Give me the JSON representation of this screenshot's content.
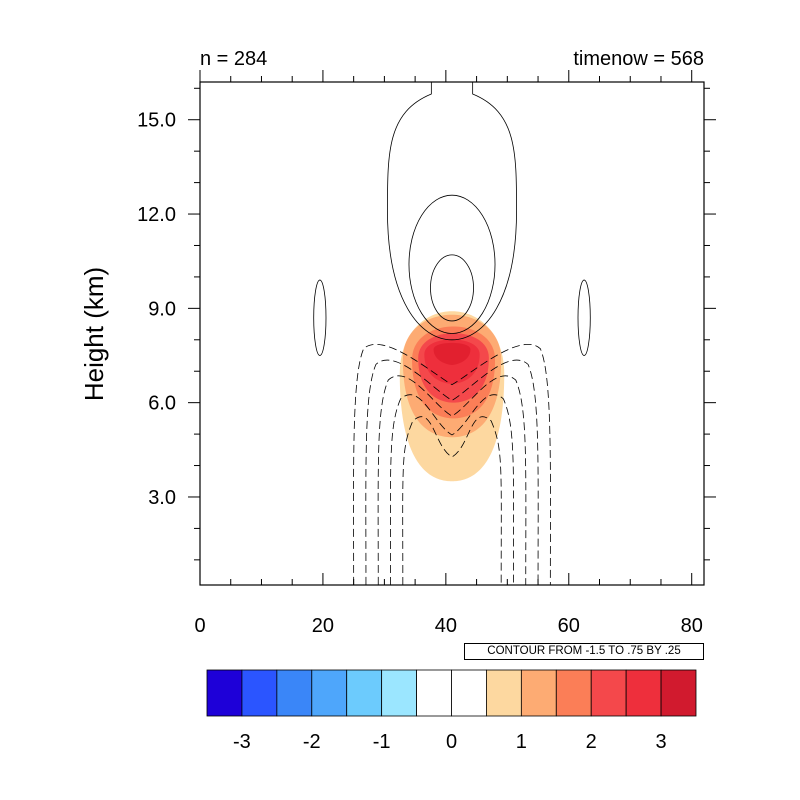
{
  "chart_data": {
    "type": "heatmap",
    "title_left": "n = 284",
    "title_right": "timenow = 568",
    "ylabel": "Height (km)",
    "xlabel": "",
    "xlim": [
      0,
      82
    ],
    "ylim": [
      0.2,
      16.2
    ],
    "x_ticks": [
      0,
      20,
      40,
      60,
      80
    ],
    "x_tick_labels": [
      "0",
      "20",
      "40",
      "60",
      "80"
    ],
    "y_ticks": [
      3,
      6,
      9,
      12,
      15
    ],
    "y_tick_labels": [
      "3.0",
      "6.0",
      "9.0",
      "12.0",
      "15.0"
    ],
    "grid": false,
    "fill_field": {
      "center_x": 41,
      "levels": [
        0.25,
        0.5,
        0.75,
        1.0,
        1.25,
        1.5
      ],
      "level_colors": [
        "#fdd8a0",
        "#fdab73",
        "#fb7e57",
        "#f4484b",
        "#ee2f3c",
        "#e2202f"
      ],
      "approx_extent_by_level": [
        {
          "level": 0.25,
          "x_range": [
            32.5,
            49.5
          ],
          "y_range": [
            3.5,
            9.7
          ]
        },
        {
          "level": 0.5,
          "x_range": [
            33,
            49
          ],
          "y_range": [
            4.9,
            9.4
          ]
        },
        {
          "level": 0.75,
          "x_range": [
            34.5,
            48
          ],
          "y_range": [
            5.5,
            8.9
          ]
        },
        {
          "level": 1.0,
          "x_range": [
            35.5,
            47
          ],
          "y_range": [
            6.0,
            8.6
          ]
        },
        {
          "level": 1.25,
          "x_range": [
            36.5,
            45.5
          ],
          "y_range": [
            6.6,
            8.3
          ]
        },
        {
          "level": 1.5,
          "x_range": [
            38,
            44
          ],
          "y_range": [
            7.2,
            8.1
          ]
        }
      ]
    },
    "line_contours": {
      "positive_solid": [
        {
          "x_range": [
            30.5,
            51.5
          ],
          "y_range": [
            8.0,
            16.2
          ],
          "open_top": true
        },
        {
          "x_range": [
            34,
            48
          ],
          "y_range": [
            8.2,
            12.6
          ]
        },
        {
          "x_range": [
            37.5,
            44.5
          ],
          "y_range": [
            8.6,
            10.7
          ]
        },
        {
          "x_range": [
            18.5,
            20.5
          ],
          "y_range": [
            7.5,
            9.9
          ]
        },
        {
          "x_range": [
            61.5,
            63.5
          ],
          "y_range": [
            7.5,
            9.9
          ]
        }
      ],
      "negative_dashed": [
        {
          "x_range": [
            25,
            57
          ],
          "y_range": [
            0.2,
            8.1
          ],
          "open_bottom": true
        },
        {
          "x_range": [
            27,
            55
          ],
          "y_range": [
            0.2,
            7.6
          ],
          "open_bottom": true
        },
        {
          "x_range": [
            29,
            53
          ],
          "y_range": [
            0.2,
            7.1
          ],
          "open_bottom": true
        },
        {
          "x_range": [
            31,
            51
          ],
          "y_range": [
            0.2,
            6.5
          ],
          "open_bottom": true
        },
        {
          "x_range": [
            33,
            49
          ],
          "y_range": [
            0.2,
            5.8
          ],
          "open_bottom": true
        }
      ]
    },
    "contour_info": "CONTOUR FROM -1.5 TO .75 BY .25",
    "colorbar": {
      "colors": [
        "#1e00d8",
        "#2b55ff",
        "#3a86f8",
        "#4ea6fb",
        "#6ccbfd",
        "#9be6ff",
        "#ffffff",
        "#ffffff",
        "#fdd8a0",
        "#fdab73",
        "#fb7e57",
        "#f4484b",
        "#ee2f3c",
        "#d11a2e"
      ],
      "labels": [
        "-3",
        "-2",
        "-1",
        "0",
        "1",
        "2",
        "3"
      ],
      "label_box_index": [
        1,
        3,
        5,
        7,
        9,
        11,
        13
      ]
    }
  }
}
